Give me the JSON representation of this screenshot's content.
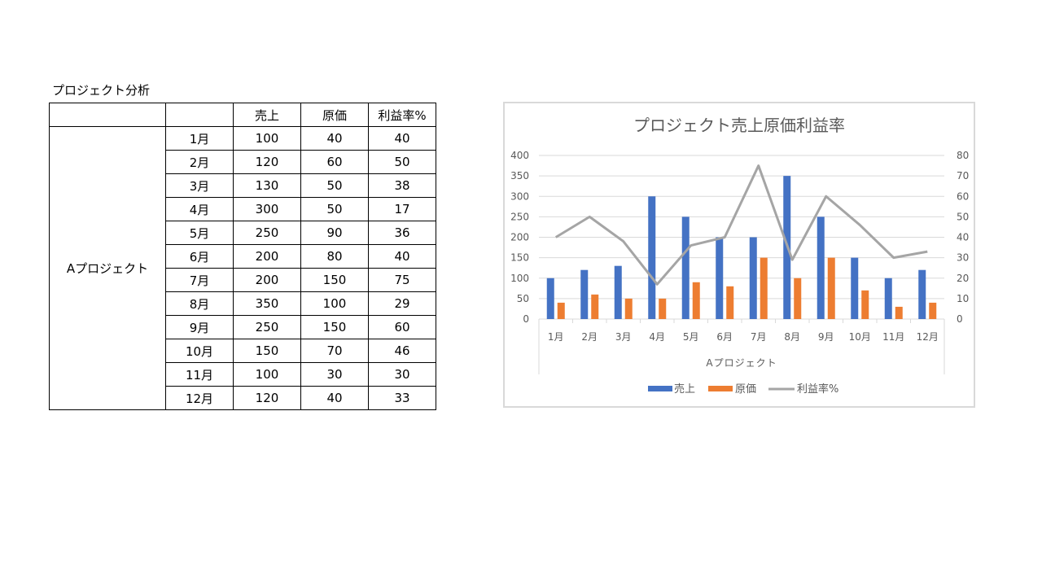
{
  "table": {
    "title": "プロジェクト分析",
    "headers": [
      "",
      "",
      "売上",
      "原価",
      "利益率%"
    ],
    "group_label": "Aプロジェクト",
    "rows": [
      {
        "month": "1月",
        "sales": "100",
        "cost": "40",
        "margin": "40"
      },
      {
        "month": "2月",
        "sales": "120",
        "cost": "60",
        "margin": "50"
      },
      {
        "month": "3月",
        "sales": "130",
        "cost": "50",
        "margin": "38"
      },
      {
        "month": "4月",
        "sales": "300",
        "cost": "50",
        "margin": "17"
      },
      {
        "month": "5月",
        "sales": "250",
        "cost": "90",
        "margin": "36"
      },
      {
        "month": "6月",
        "sales": "200",
        "cost": "80",
        "margin": "40"
      },
      {
        "month": "7月",
        "sales": "200",
        "cost": "150",
        "margin": "75"
      },
      {
        "month": "8月",
        "sales": "350",
        "cost": "100",
        "margin": "29"
      },
      {
        "month": "9月",
        "sales": "250",
        "cost": "150",
        "margin": "60"
      },
      {
        "month": "10月",
        "sales": "150",
        "cost": "70",
        "margin": "46"
      },
      {
        "month": "11月",
        "sales": "100",
        "cost": "30",
        "margin": "30"
      },
      {
        "month": "12月",
        "sales": "120",
        "cost": "40",
        "margin": "33"
      }
    ]
  },
  "chart_data": {
    "type": "bar",
    "title": "プロジェクト売上原価利益率",
    "categories": [
      "1月",
      "2月",
      "3月",
      "4月",
      "5月",
      "6月",
      "7月",
      "8月",
      "9月",
      "10月",
      "11月",
      "12月"
    ],
    "group_label": "Aプロジェクト",
    "series": [
      {
        "name": "売上",
        "type": "bar",
        "axis": "left",
        "color": "#4472c4",
        "values": [
          100,
          120,
          130,
          300,
          250,
          200,
          200,
          350,
          250,
          150,
          100,
          120
        ]
      },
      {
        "name": "原価",
        "type": "bar",
        "axis": "left",
        "color": "#ed7d31",
        "values": [
          40,
          60,
          50,
          50,
          90,
          80,
          150,
          100,
          150,
          70,
          30,
          40
        ]
      },
      {
        "name": "利益率%",
        "type": "line",
        "axis": "right",
        "color": "#a5a5a5",
        "values": [
          40,
          50,
          38,
          17,
          36,
          40,
          75,
          29,
          60,
          46,
          30,
          33
        ]
      }
    ],
    "ylim_left": [
      0,
      400
    ],
    "yticks_left": [
      0,
      50,
      100,
      150,
      200,
      250,
      300,
      350,
      400
    ],
    "ylim_right": [
      0,
      80
    ],
    "yticks_right": [
      0,
      10,
      20,
      30,
      40,
      50,
      60,
      70,
      80
    ],
    "grid": true,
    "legend": "bottom"
  }
}
